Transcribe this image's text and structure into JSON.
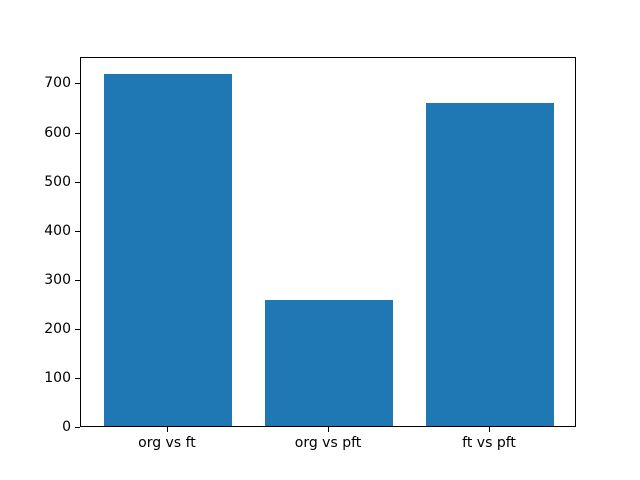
{
  "chart_data": {
    "type": "bar",
    "title": "",
    "xlabel": "",
    "ylabel": "",
    "categories": [
      "org vs ft",
      "org vs pft",
      "ft vs pft"
    ],
    "values": [
      718,
      256,
      658
    ],
    "bar_color": "#1f77b4",
    "axis_color": "#000000",
    "background_color": "#ffffff",
    "ylim": [
      0,
      754
    ],
    "yticks": [
      0,
      100,
      200,
      300,
      400,
      500,
      600,
      700
    ],
    "xlim": [
      -0.54,
      2.54
    ],
    "bar_width": 0.8,
    "grid": false,
    "legend": null
  }
}
